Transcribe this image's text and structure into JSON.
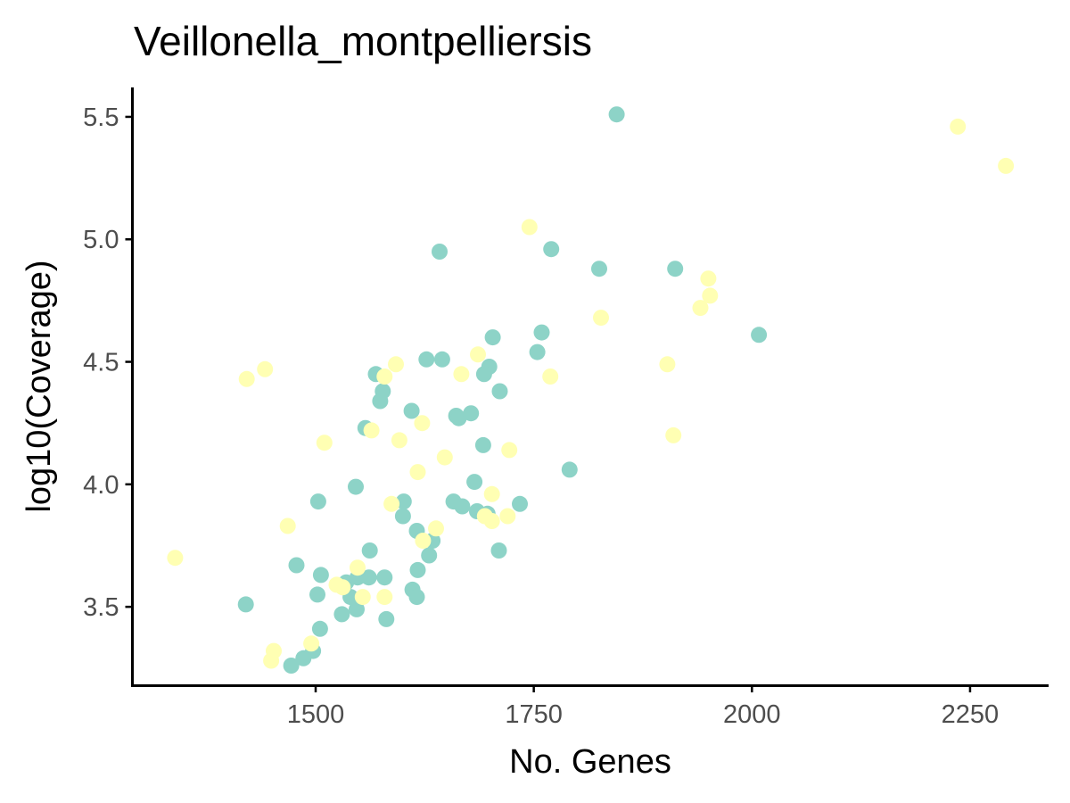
{
  "chart_data": {
    "type": "scatter",
    "title": "Veillonella_montpelliersis",
    "xlabel": "No. Genes",
    "ylabel": "log10(Coverage)",
    "xlim": [
      1290,
      2340
    ],
    "ylim": [
      3.18,
      5.62
    ],
    "xticks": [
      1500,
      1750,
      2000,
      2250
    ],
    "yticks": [
      3.5,
      4.0,
      4.5,
      5.0,
      5.5
    ],
    "xtick_labels": [
      "1500",
      "1750",
      "2000",
      "2250"
    ],
    "ytick_labels": [
      "3.5",
      "4.0",
      "4.5",
      "5.0",
      "5.5"
    ],
    "grid": false,
    "legend": "none",
    "series": [
      {
        "color": "#8dd3c7",
        "points": [
          [
            1845,
            5.51
          ],
          [
            1642,
            4.95
          ],
          [
            1770,
            4.96
          ],
          [
            1825,
            4.88
          ],
          [
            1912,
            4.88
          ],
          [
            2008,
            4.61
          ],
          [
            1759,
            4.62
          ],
          [
            1703,
            4.6
          ],
          [
            1754,
            4.54
          ],
          [
            1627,
            4.51
          ],
          [
            1645,
            4.51
          ],
          [
            1699,
            4.48
          ],
          [
            1693,
            4.45
          ],
          [
            1569,
            4.45
          ],
          [
            1577,
            4.38
          ],
          [
            1574,
            4.34
          ],
          [
            1711,
            4.38
          ],
          [
            1610,
            4.3
          ],
          [
            1661,
            4.28
          ],
          [
            1664,
            4.27
          ],
          [
            1678,
            4.29
          ],
          [
            1557,
            4.23
          ],
          [
            1692,
            4.16
          ],
          [
            1791,
            4.06
          ],
          [
            1682,
            4.01
          ],
          [
            1546,
            3.99
          ],
          [
            1503,
            3.93
          ],
          [
            1601,
            3.93
          ],
          [
            1658,
            3.93
          ],
          [
            1668,
            3.91
          ],
          [
            1734,
            3.92
          ],
          [
            1685,
            3.89
          ],
          [
            1697,
            3.88
          ],
          [
            1600,
            3.87
          ],
          [
            1616,
            3.81
          ],
          [
            1634,
            3.77
          ],
          [
            1562,
            3.73
          ],
          [
            1710,
            3.73
          ],
          [
            1630,
            3.71
          ],
          [
            1478,
            3.67
          ],
          [
            1506,
            3.63
          ],
          [
            1617,
            3.65
          ],
          [
            1535,
            3.6
          ],
          [
            1548,
            3.62
          ],
          [
            1561,
            3.62
          ],
          [
            1579,
            3.62
          ],
          [
            1611,
            3.57
          ],
          [
            1502,
            3.55
          ],
          [
            1540,
            3.54
          ],
          [
            1616,
            3.54
          ],
          [
            1420,
            3.51
          ],
          [
            1547,
            3.49
          ],
          [
            1530,
            3.47
          ],
          [
            1581,
            3.45
          ],
          [
            1505,
            3.41
          ],
          [
            1497,
            3.32
          ],
          [
            1486,
            3.29
          ],
          [
            1472,
            3.26
          ]
        ]
      },
      {
        "color": "#ffffb3",
        "points": [
          [
            2236,
            5.46
          ],
          [
            2291,
            5.3
          ],
          [
            1745,
            5.05
          ],
          [
            1950,
            4.84
          ],
          [
            1952,
            4.77
          ],
          [
            1941,
            4.72
          ],
          [
            1827,
            4.68
          ],
          [
            1686,
            4.53
          ],
          [
            1903,
            4.49
          ],
          [
            1592,
            4.49
          ],
          [
            1442,
            4.47
          ],
          [
            1667,
            4.45
          ],
          [
            1769,
            4.44
          ],
          [
            1579,
            4.44
          ],
          [
            1421,
            4.43
          ],
          [
            1622,
            4.25
          ],
          [
            1564,
            4.22
          ],
          [
            1910,
            4.2
          ],
          [
            1510,
            4.17
          ],
          [
            1596,
            4.18
          ],
          [
            1722,
            4.14
          ],
          [
            1648,
            4.11
          ],
          [
            1617,
            4.05
          ],
          [
            1702,
            3.96
          ],
          [
            1587,
            3.92
          ],
          [
            1694,
            3.87
          ],
          [
            1720,
            3.87
          ],
          [
            1702,
            3.85
          ],
          [
            1468,
            3.83
          ],
          [
            1638,
            3.82
          ],
          [
            1623,
            3.77
          ],
          [
            1339,
            3.7
          ],
          [
            1548,
            3.66
          ],
          [
            1524,
            3.59
          ],
          [
            1531,
            3.58
          ],
          [
            1554,
            3.54
          ],
          [
            1579,
            3.54
          ],
          [
            1495,
            3.35
          ],
          [
            1452,
            3.32
          ],
          [
            1449,
            3.28
          ]
        ]
      }
    ]
  }
}
